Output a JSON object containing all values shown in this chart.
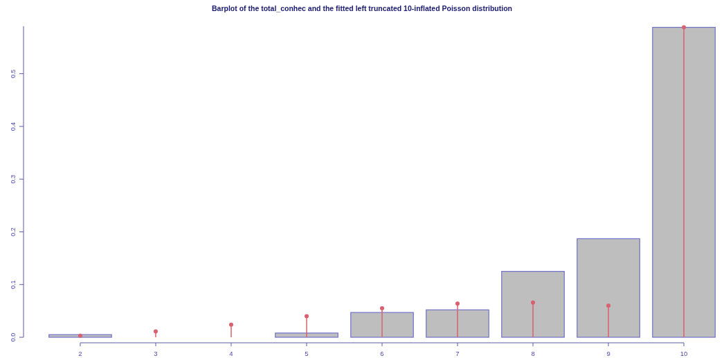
{
  "chart_data": {
    "type": "bar",
    "title": "Barplot of the total_conhec and the fitted left truncated 10-inflated Poisson distribution",
    "categories": [
      "2",
      "3",
      "4",
      "5",
      "6",
      "7",
      "8",
      "9",
      "10"
    ],
    "series": [
      {
        "color": "#bebebe",
        "values": [
          0.005,
          0,
          0,
          0.008,
          0.047,
          0.052,
          0.125,
          0.187,
          0.588
        ]
      },
      {
        "type": "lollipop",
        "color": "#d9606e",
        "values": [
          0.003,
          0.011,
          0.024,
          0.04,
          0.055,
          0.064,
          0.066,
          0.06,
          0.588
        ]
      }
    ],
    "ylim": [
      0,
      0.59
    ],
    "yticks": [
      {
        "value": 0,
        "label": "0.0"
      },
      {
        "value": 0.1,
        "label": "0.1"
      },
      {
        "value": 0.2,
        "label": "0.2"
      },
      {
        "value": 0.3,
        "label": "0.3"
      },
      {
        "value": 0.4,
        "label": "0.4"
      },
      {
        "value": 0.5,
        "label": "0.5"
      }
    ],
    "grid": false,
    "marker": "circle"
  }
}
